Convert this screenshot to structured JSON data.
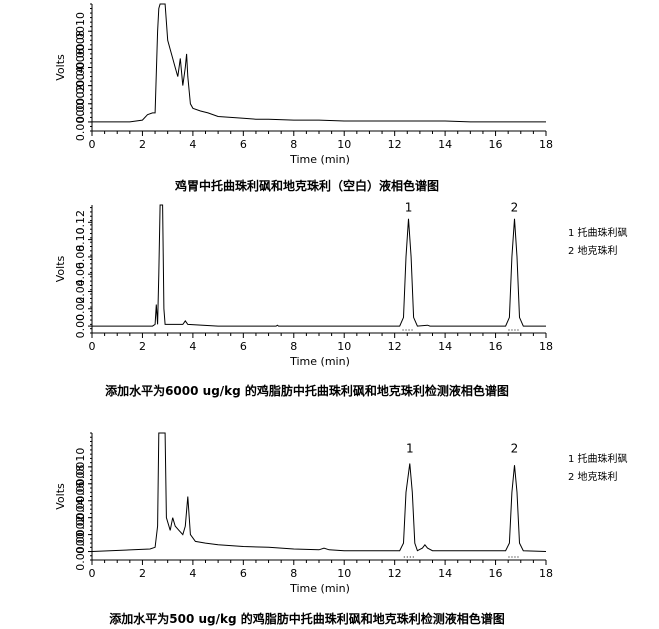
{
  "chart_data": [
    {
      "type": "line",
      "title": "鸡胃中托曲珠利砜和地克珠利（空白）液相色谱图",
      "xlabel": "Time (min)",
      "ylabel": "Volts",
      "xlim": [
        0,
        18
      ],
      "ylim": [
        -0.0001,
        0.0013
      ],
      "x_ticks": [
        "0",
        "2",
        "4",
        "6",
        "8",
        "10",
        "12",
        "14",
        "16",
        "18"
      ],
      "y_ticks": [
        {
          "v": 0.0,
          "label": "0.0000"
        },
        {
          "v": 0.0002,
          "label": "0.0002"
        },
        {
          "v": 0.0004,
          "label": "0.0004"
        },
        {
          "v": 0.0006,
          "label": "0.0006"
        },
        {
          "v": 0.0008,
          "label": "0.0008"
        },
        {
          "v": 0.001,
          "label": "0.0010"
        }
      ],
      "peak_labels": [],
      "legend": [],
      "series": [
        {
          "points": [
            [
              0,
              0.0
            ],
            [
              1.5,
              0.0
            ],
            [
              2.0,
              2e-05
            ],
            [
              2.2,
              8e-05
            ],
            [
              2.4,
              0.0001
            ],
            [
              2.5,
              0.0001
            ],
            [
              2.6,
              0.001
            ],
            [
              2.65,
              0.00125
            ],
            [
              2.7,
              0.0013
            ],
            [
              2.9,
              0.0013
            ],
            [
              3.0,
              0.0009
            ],
            [
              3.1,
              0.0008
            ],
            [
              3.2,
              0.0007
            ],
            [
              3.3,
              0.0006
            ],
            [
              3.4,
              0.0005
            ],
            [
              3.5,
              0.0007
            ],
            [
              3.6,
              0.0004
            ],
            [
              3.7,
              0.0006
            ],
            [
              3.75,
              0.00075
            ],
            [
              3.8,
              0.0005
            ],
            [
              3.9,
              0.0002
            ],
            [
              4.0,
              0.00015
            ],
            [
              4.3,
              0.00012
            ],
            [
              4.6,
              0.0001
            ],
            [
              5.0,
              6e-05
            ],
            [
              5.5,
              5e-05
            ],
            [
              6.0,
              4e-05
            ],
            [
              6.5,
              3e-05
            ],
            [
              7.0,
              3e-05
            ],
            [
              8.0,
              2e-05
            ],
            [
              9.0,
              2e-05
            ],
            [
              10.0,
              1e-05
            ],
            [
              11.0,
              1e-05
            ],
            [
              12.0,
              1e-05
            ],
            [
              13.0,
              1e-05
            ],
            [
              14.0,
              1e-05
            ],
            [
              15.0,
              0.0
            ],
            [
              16.0,
              0.0
            ],
            [
              17.0,
              0.0
            ],
            [
              18.0,
              0.0
            ]
          ]
        }
      ]
    },
    {
      "type": "line",
      "title": "添加水平为6000 ug/kg 的鸡脂肪中托曲珠利砜和地克珠利检测液相色谱图",
      "xlabel": "Time (min)",
      "ylabel": "Volts",
      "xlim": [
        0,
        18
      ],
      "ylim": [
        -0.008,
        0.14
      ],
      "x_ticks": [
        "0",
        "2",
        "4",
        "6",
        "8",
        "10",
        "12",
        "14",
        "16",
        "18"
      ],
      "y_ticks": [
        {
          "v": 0.0,
          "label": "0.00"
        },
        {
          "v": 0.02,
          "label": "0.02"
        },
        {
          "v": 0.04,
          "label": "0.04"
        },
        {
          "v": 0.06,
          "label": "0.06"
        },
        {
          "v": 0.08,
          "label": "0.08"
        },
        {
          "v": 0.1,
          "label": "0.10"
        },
        {
          "v": 0.12,
          "label": "0.12"
        }
      ],
      "peak_labels": [
        {
          "x": 12.55,
          "y": 0.128,
          "text": "1"
        },
        {
          "x": 16.75,
          "y": 0.128,
          "text": "2"
        }
      ],
      "legend": [
        "1 托曲珠利砜",
        "2 地克珠利"
      ],
      "series": [
        {
          "points": [
            [
              0,
              0.0
            ],
            [
              2.4,
              0.0
            ],
            [
              2.5,
              0.002
            ],
            [
              2.55,
              0.025
            ],
            [
              2.6,
              0.002
            ],
            [
              2.65,
              0.06
            ],
            [
              2.7,
              0.14
            ],
            [
              2.8,
              0.14
            ],
            [
              2.85,
              0.02
            ],
            [
              2.9,
              0.002
            ],
            [
              3.6,
              0.002
            ],
            [
              3.7,
              0.006
            ],
            [
              3.8,
              0.002
            ],
            [
              5.0,
              0.0
            ],
            [
              7.3,
              0.0
            ],
            [
              7.35,
              0.001
            ],
            [
              7.4,
              0.0
            ],
            [
              12.2,
              0.0
            ],
            [
              12.35,
              0.01
            ],
            [
              12.45,
              0.08
            ],
            [
              12.55,
              0.124
            ],
            [
              12.65,
              0.08
            ],
            [
              12.75,
              0.01
            ],
            [
              12.9,
              0.0
            ],
            [
              13.3,
              0.001
            ],
            [
              13.4,
              0.0
            ],
            [
              16.4,
              0.0
            ],
            [
              16.55,
              0.01
            ],
            [
              16.65,
              0.08
            ],
            [
              16.75,
              0.124
            ],
            [
              16.85,
              0.08
            ],
            [
              16.95,
              0.01
            ],
            [
              17.1,
              0.0
            ],
            [
              18.0,
              0.0
            ]
          ]
        }
      ]
    },
    {
      "type": "line",
      "title": "添加水平为500 ug/kg 的鸡脂肪中托曲珠利砜和地克珠利检测液相色谱图",
      "xlabel": "Time (min)",
      "ylabel": "Volts",
      "xlim": [
        0,
        18
      ],
      "ylim": [
        -0.0001,
        0.0014
      ],
      "x_ticks": [
        "0",
        "2",
        "4",
        "6",
        "8",
        "10",
        "12",
        "14",
        "16",
        "18"
      ],
      "y_ticks": [
        {
          "v": 0.0,
          "label": "0.0000"
        },
        {
          "v": 0.0002,
          "label": "0.0002"
        },
        {
          "v": 0.0004,
          "label": "0.0004"
        },
        {
          "v": 0.0006,
          "label": "0.0006"
        },
        {
          "v": 0.0008,
          "label": "0.0008"
        },
        {
          "v": 0.001,
          "label": "0.0010"
        }
      ],
      "peak_labels": [
        {
          "x": 12.6,
          "y": 0.00112,
          "text": "1"
        },
        {
          "x": 16.75,
          "y": 0.00112,
          "text": "2"
        }
      ],
      "legend": [
        "1 托曲珠利砜",
        "2 地克珠利"
      ],
      "series": [
        {
          "points": [
            [
              0,
              0.0
            ],
            [
              2.3,
              3e-05
            ],
            [
              2.5,
              5e-05
            ],
            [
              2.6,
              0.0003
            ],
            [
              2.65,
              0.0014
            ],
            [
              2.9,
              0.0014
            ],
            [
              2.95,
              0.0004
            ],
            [
              3.1,
              0.00025
            ],
            [
              3.2,
              0.0004
            ],
            [
              3.3,
              0.0003
            ],
            [
              3.45,
              0.00025
            ],
            [
              3.6,
              0.0002
            ],
            [
              3.7,
              0.0003
            ],
            [
              3.8,
              0.00065
            ],
            [
              3.9,
              0.0002
            ],
            [
              4.1,
              0.00012
            ],
            [
              4.5,
              0.0001
            ],
            [
              5.0,
              8e-05
            ],
            [
              6.0,
              6e-05
            ],
            [
              7.0,
              5e-05
            ],
            [
              8.0,
              3e-05
            ],
            [
              9.0,
              2e-05
            ],
            [
              9.2,
              4e-05
            ],
            [
              9.4,
              2e-05
            ],
            [
              10.0,
              1e-05
            ],
            [
              12.2,
              1e-05
            ],
            [
              12.35,
              0.0001
            ],
            [
              12.45,
              0.0007
            ],
            [
              12.6,
              0.00104
            ],
            [
              12.7,
              0.0007
            ],
            [
              12.8,
              0.0001
            ],
            [
              12.9,
              1e-05
            ],
            [
              13.1,
              4e-05
            ],
            [
              13.2,
              8e-05
            ],
            [
              13.3,
              4e-05
            ],
            [
              13.5,
              1e-05
            ],
            [
              16.4,
              1e-05
            ],
            [
              16.55,
              0.0001
            ],
            [
              16.65,
              0.0007
            ],
            [
              16.75,
              0.00102
            ],
            [
              16.85,
              0.0007
            ],
            [
              16.95,
              0.0001
            ],
            [
              17.1,
              1e-05
            ],
            [
              18.0,
              0.0
            ]
          ]
        }
      ]
    }
  ]
}
